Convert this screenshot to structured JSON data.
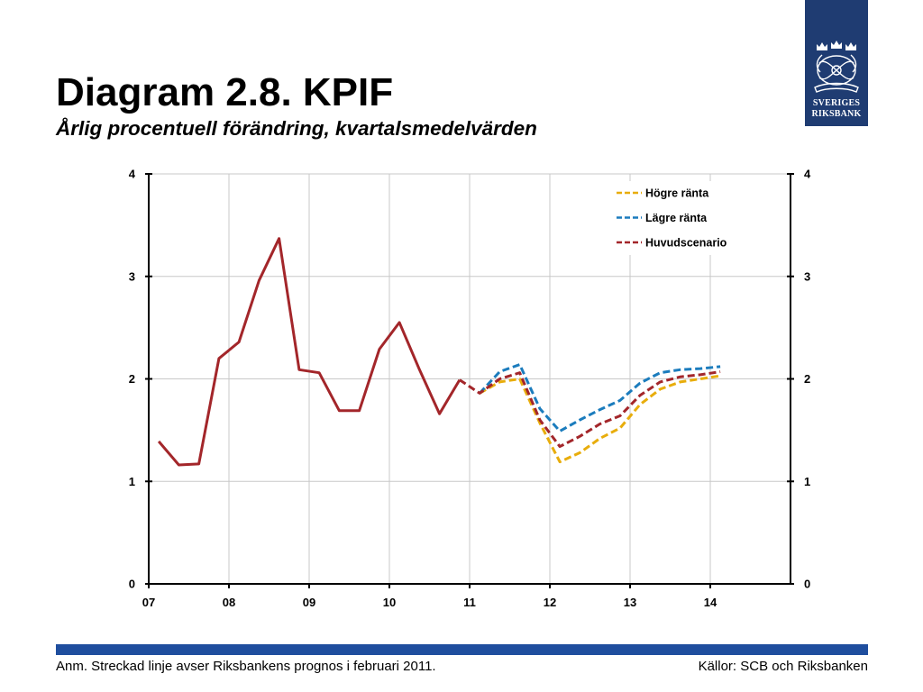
{
  "slide": {
    "title": "Diagram 2.8. KPIF",
    "subtitle": "Årlig procentuell förändring, kvartalsmedelvärden",
    "note": "Anm. Streckad linje avser Riksbankens prognos i februari 2011.",
    "sources": "Källor: SCB och Riksbanken"
  },
  "logo": {
    "line1": "SVERIGES",
    "line2": "RIKSBANK",
    "icon": "riksbank-crowns-emblem-icon",
    "background": "#1f3c72",
    "foreground": "#ffffff"
  },
  "colors": {
    "footer_bar": "#1f4e9e",
    "grid": "#c8c8c8",
    "axis": "#000000"
  },
  "chart_data": {
    "type": "line",
    "x": [
      "2007Q1",
      "2007Q2",
      "2007Q3",
      "2007Q4",
      "2008Q1",
      "2008Q2",
      "2008Q3",
      "2008Q4",
      "2009Q1",
      "2009Q2",
      "2009Q3",
      "2009Q4",
      "2010Q1",
      "2010Q2",
      "2010Q3",
      "2010Q4",
      "2011Q1",
      "2011Q2",
      "2011Q3",
      "2011Q4",
      "2012Q1",
      "2012Q2",
      "2012Q3",
      "2012Q4",
      "2013Q1",
      "2013Q2",
      "2013Q3",
      "2013Q4",
      "2014Q1"
    ],
    "xlim": [
      2007,
      2015
    ],
    "x_tick_labels": [
      "07",
      "08",
      "09",
      "10",
      "11",
      "12",
      "13",
      "14"
    ],
    "ylim": [
      0,
      4
    ],
    "y_ticks": [
      0,
      1,
      2,
      3,
      4
    ],
    "y_tick_labels": [
      "0",
      "1",
      "2",
      "3",
      "4"
    ],
    "grid": true,
    "legend_position": "top-right",
    "series": [
      {
        "color": "#a3262a",
        "dashed": false,
        "values": [
          1.39,
          1.16,
          1.17,
          2.2,
          2.36,
          2.96,
          3.37,
          2.09,
          2.06,
          1.69,
          1.69,
          2.29,
          2.55,
          2.09,
          1.66,
          1.99,
          null,
          null,
          null,
          null,
          null,
          null,
          null,
          null,
          null,
          null,
          null,
          null,
          null
        ]
      },
      {
        "name": "Högre ränta",
        "color": "#e8ad0c",
        "dashed": true,
        "values": [
          null,
          null,
          null,
          null,
          null,
          null,
          null,
          null,
          null,
          null,
          null,
          null,
          null,
          null,
          null,
          null,
          1.86,
          1.97,
          2.0,
          1.57,
          1.19,
          1.28,
          1.42,
          1.52,
          1.75,
          1.9,
          1.97,
          2.0,
          2.03
        ]
      },
      {
        "name": "Lägre ränta",
        "color": "#1b7cbd",
        "dashed": true,
        "values": [
          null,
          null,
          null,
          null,
          null,
          null,
          null,
          null,
          null,
          null,
          null,
          null,
          null,
          null,
          null,
          null,
          1.86,
          2.07,
          2.14,
          1.71,
          1.49,
          1.6,
          1.7,
          1.79,
          1.96,
          2.06,
          2.09,
          2.1,
          2.12
        ]
      },
      {
        "name": "Huvudscenario",
        "color": "#a3262a",
        "dashed": true,
        "values": [
          null,
          null,
          null,
          null,
          null,
          null,
          null,
          null,
          null,
          null,
          null,
          null,
          null,
          null,
          null,
          1.99,
          1.86,
          2.0,
          2.06,
          1.6,
          1.34,
          1.44,
          1.56,
          1.64,
          1.84,
          1.97,
          2.02,
          2.04,
          2.07
        ]
      }
    ]
  }
}
